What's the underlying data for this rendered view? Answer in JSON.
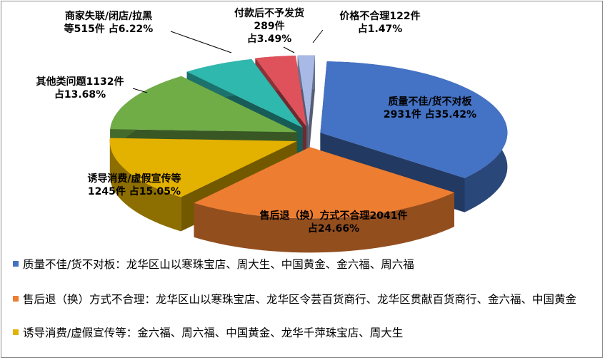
{
  "chart_data": {
    "type": "pie",
    "style": "3d-exploded",
    "slices": [
      {
        "name": "质量不佳/货不对板",
        "count": 2931,
        "pct": 35.42,
        "color": "#4472C4",
        "label_line1": "质量不佳/货不对板",
        "label_line2": "2931件 占35.42%"
      },
      {
        "name": "售后退（换）方式不合理",
        "count": 2041,
        "pct": 24.66,
        "color": "#ED7D31",
        "label_line1": "售后退（换）方式不合理2041件",
        "label_line2": "占24.66%"
      },
      {
        "name": "诱导消费/虚假宣传等",
        "count": 1245,
        "pct": 15.05,
        "color": "#E3B100",
        "label_line1": "诱导消费/虚假宣传等",
        "label_line2": "1245件 占15.05%"
      },
      {
        "name": "其他类问题",
        "count": 1132,
        "pct": 13.68,
        "color": "#70AD47",
        "label_line1": "其他类问题1132件",
        "label_line2": "占13.68%"
      },
      {
        "name": "商家失联/闭店/拉黑等",
        "count": 515,
        "pct": 6.22,
        "color": "#2EB8AE",
        "label_line1": "商家失联/闭店/拉黑",
        "label_line2": "等515件 占6.22%"
      },
      {
        "name": "付款后不予发货",
        "count": 289,
        "pct": 3.49,
        "color": "#E0525B",
        "label_line1": "付款后不予发货",
        "label_line2": "289件",
        "label_line3": "占3.49%"
      },
      {
        "name": "价格不合理",
        "count": 122,
        "pct": 1.47,
        "color": "#A9B9E6",
        "label_line1": "价格不合理122件",
        "label_line2": "占1.47%"
      }
    ]
  },
  "legend_notes": [
    {
      "color": "#4472C4",
      "text": "质量不佳/货不对板：龙华区山以寒珠宝店、周大生、中国黄金、金六福、周六福"
    },
    {
      "color": "#ED7D31",
      "text": "售后退（换）方式不合理：龙华区山以寒珠宝店、龙华区令芸百货商行、龙华区贯献百货商行、金六福、中国黄金"
    },
    {
      "color": "#E3B100",
      "text": "诱导消费/虚假宣传等：金六福、周六福、中国黄金、龙华千萍珠宝店、周大生"
    }
  ]
}
